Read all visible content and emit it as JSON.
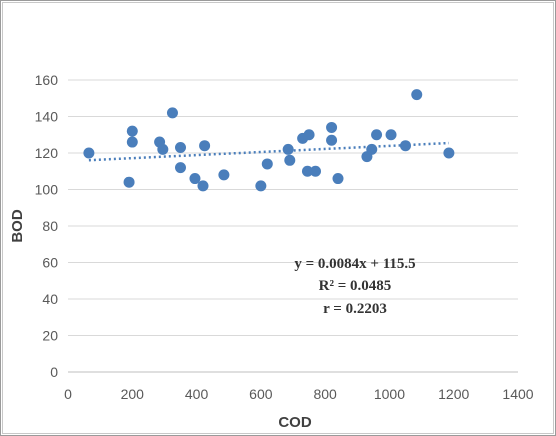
{
  "chart_data": {
    "type": "scatter",
    "xlabel": "COD",
    "ylabel": "BOD",
    "xlim": [
      0,
      1400
    ],
    "ylim": [
      0,
      160
    ],
    "xticks": [
      0,
      200,
      400,
      600,
      800,
      1000,
      1200,
      1400
    ],
    "yticks": [
      0,
      20,
      40,
      60,
      80,
      100,
      120,
      140,
      160
    ],
    "grid": "horizontal",
    "point_color": "#4a7ebb",
    "trendline_color": "#4a7ebb",
    "points": [
      {
        "x": 65,
        "y": 120
      },
      {
        "x": 190,
        "y": 104
      },
      {
        "x": 200,
        "y": 132
      },
      {
        "x": 200,
        "y": 126
      },
      {
        "x": 285,
        "y": 126
      },
      {
        "x": 295,
        "y": 122
      },
      {
        "x": 325,
        "y": 142
      },
      {
        "x": 350,
        "y": 123
      },
      {
        "x": 350,
        "y": 112
      },
      {
        "x": 395,
        "y": 106
      },
      {
        "x": 420,
        "y": 102
      },
      {
        "x": 425,
        "y": 124
      },
      {
        "x": 485,
        "y": 108
      },
      {
        "x": 600,
        "y": 102
      },
      {
        "x": 620,
        "y": 114
      },
      {
        "x": 685,
        "y": 122
      },
      {
        "x": 690,
        "y": 116
      },
      {
        "x": 730,
        "y": 128
      },
      {
        "x": 745,
        "y": 110
      },
      {
        "x": 750,
        "y": 130
      },
      {
        "x": 770,
        "y": 110
      },
      {
        "x": 820,
        "y": 134
      },
      {
        "x": 820,
        "y": 127
      },
      {
        "x": 840,
        "y": 106
      },
      {
        "x": 930,
        "y": 118
      },
      {
        "x": 945,
        "y": 122
      },
      {
        "x": 960,
        "y": 130
      },
      {
        "x": 1005,
        "y": 130
      },
      {
        "x": 1050,
        "y": 124
      },
      {
        "x": 1085,
        "y": 152
      },
      {
        "x": 1185,
        "y": 120
      }
    ],
    "trendline": {
      "slope": 0.0084,
      "intercept": 115.5,
      "x_start": 65,
      "x_end": 1185
    },
    "annotations": {
      "equation": "y = 0.0084x + 115.5",
      "r_squared": "R² = 0.0485",
      "r": "r = 0.2203"
    }
  }
}
